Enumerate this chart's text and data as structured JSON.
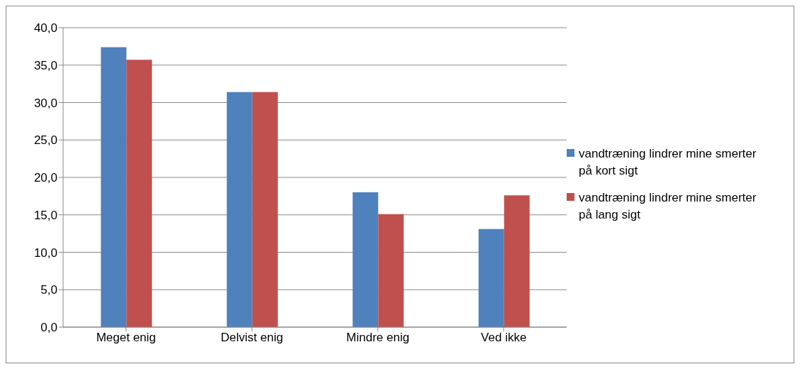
{
  "chart_data": {
    "type": "bar",
    "categories": [
      "Meget enig",
      "Delvist enig",
      "Mindre enig",
      "Ved ikke"
    ],
    "series": [
      {
        "name": "vandtræning lindrer mine smerter på kort sigt",
        "color": "#4f81bd",
        "values": [
          37.4,
          31.4,
          18.0,
          13.1
        ]
      },
      {
        "name": "vandtræning lindrer mine smerter på lang sigt",
        "color": "#c0504d",
        "values": [
          35.7,
          31.4,
          15.1,
          17.6
        ]
      }
    ],
    "ylim": [
      0,
      40
    ],
    "yticks": [
      {
        "value": 0,
        "label": "0,0"
      },
      {
        "value": 5,
        "label": "5,0"
      },
      {
        "value": 10,
        "label": "10,0"
      },
      {
        "value": 15,
        "label": "15,0"
      },
      {
        "value": 20,
        "label": "20,0"
      },
      {
        "value": 25,
        "label": "25,0"
      },
      {
        "value": 30,
        "label": "30,0"
      },
      {
        "value": 35,
        "label": "35,0"
      },
      {
        "value": 40,
        "label": "40,0"
      }
    ],
    "grid": "y",
    "legend": "right"
  }
}
